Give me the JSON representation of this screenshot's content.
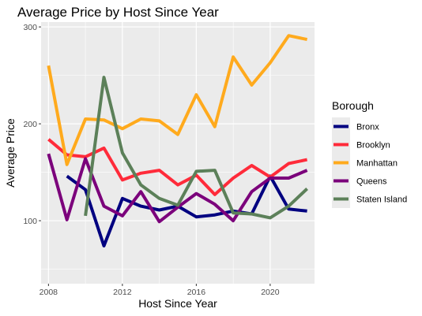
{
  "chart_data": {
    "type": "line",
    "title": "Average Price by Host Since Year",
    "xlabel": "Host Since Year",
    "ylabel": "Average Price",
    "xlim": [
      2007.6,
      2022.4
    ],
    "ylim": [
      35,
      305
    ],
    "xticks": [
      2008,
      2012,
      2016,
      2020
    ],
    "xtick_labels": [
      "2008",
      "2012",
      "2016",
      "2020"
    ],
    "yticks": [
      100,
      200,
      300
    ],
    "ytick_labels": [
      "100",
      "200",
      "300"
    ],
    "grid": true,
    "legend_title": "Borough",
    "legend_position": "right",
    "series": [
      {
        "name": "Bronx",
        "color": "#000080",
        "x": [
          2009,
          2010,
          2011,
          2012,
          2013,
          2014,
          2015,
          2016,
          2017,
          2018,
          2019,
          2020,
          2021,
          2022
        ],
        "y": [
          146,
          132,
          74,
          123,
          115,
          111,
          115,
          104,
          106,
          110,
          107,
          146,
          112,
          110
        ]
      },
      {
        "name": "Brooklyn",
        "color": "#ff2b3a",
        "x": [
          2008,
          2009,
          2010,
          2011,
          2012,
          2013,
          2014,
          2015,
          2016,
          2017,
          2018,
          2019,
          2020,
          2021,
          2022
        ],
        "y": [
          184,
          168,
          166,
          175,
          142,
          149,
          152,
          137,
          147,
          127,
          144,
          157,
          145,
          159,
          163
        ]
      },
      {
        "name": "Manhattan",
        "color": "#ffaa1d",
        "x": [
          2008,
          2009,
          2010,
          2011,
          2012,
          2013,
          2014,
          2015,
          2016,
          2017,
          2018,
          2019,
          2020,
          2021,
          2022
        ],
        "y": [
          260,
          158,
          205,
          204,
          195,
          205,
          203,
          189,
          230,
          197,
          269,
          240,
          263,
          291,
          287
        ]
      },
      {
        "name": "Queens",
        "color": "#7b007b",
        "x": [
          2008,
          2009,
          2010,
          2011,
          2012,
          2013,
          2014,
          2015,
          2016,
          2017,
          2018,
          2019,
          2020,
          2021,
          2022
        ],
        "y": [
          169,
          101,
          164,
          115,
          105,
          130,
          99,
          114,
          128,
          117,
          100,
          130,
          144,
          144,
          152
        ]
      },
      {
        "name": "Staten Island",
        "color": "#5c8059",
        "x": [
          2010,
          2011,
          2012,
          2013,
          2014,
          2015,
          2016,
          2017,
          2018,
          2019,
          2020,
          2021,
          2022
        ],
        "y": [
          105,
          248,
          170,
          137,
          123,
          116,
          151,
          152,
          108,
          107,
          103,
          115,
          133
        ]
      }
    ]
  }
}
